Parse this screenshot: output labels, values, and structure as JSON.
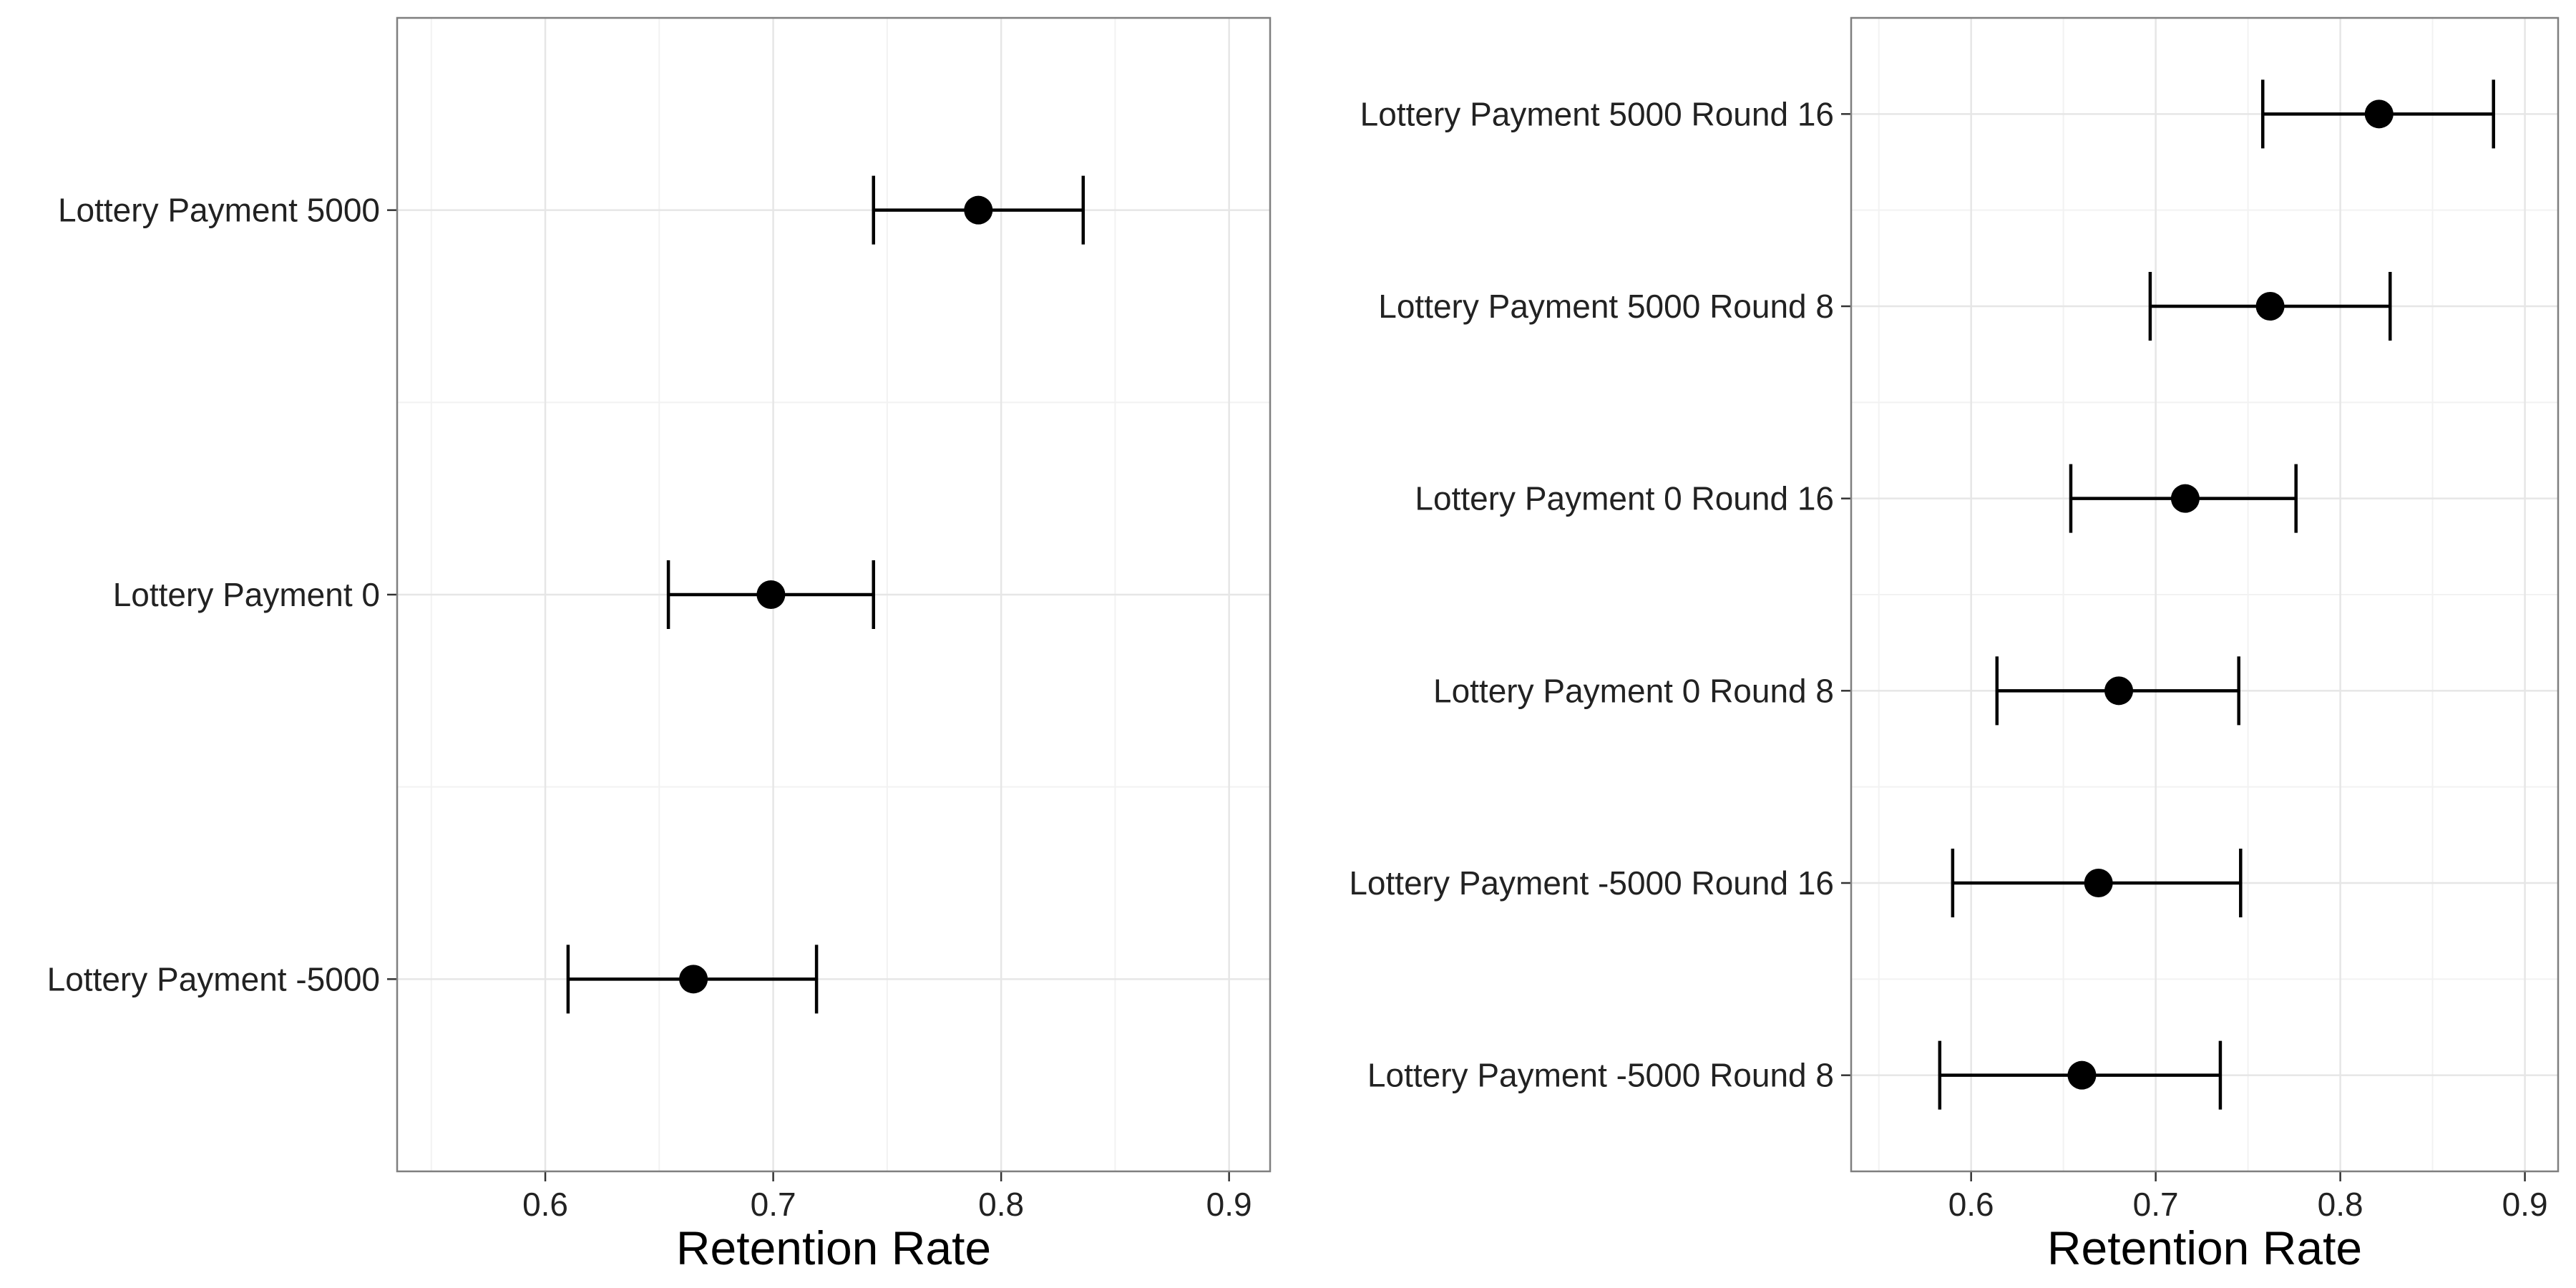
{
  "chart_data": [
    {
      "type": "scatter",
      "title": "",
      "xlabel": "Retention Rate",
      "ylabel": "",
      "xlim": [
        0.535,
        0.918
      ],
      "xticks": [
        0.6,
        0.7,
        0.8,
        0.9
      ],
      "xtick_labels": [
        "0.6",
        "0.7",
        "0.8",
        "0.9"
      ],
      "grid": true,
      "error_bars": true,
      "categories": [
        "Lottery Payment 5000",
        "Lottery Payment 0",
        "Lottery Payment -5000"
      ],
      "points": [
        {
          "label": "Lottery Payment 5000",
          "value": 0.79,
          "low": 0.744,
          "high": 0.836
        },
        {
          "label": "Lottery Payment 0",
          "value": 0.699,
          "low": 0.654,
          "high": 0.744
        },
        {
          "label": "Lottery Payment -5000",
          "value": 0.665,
          "low": 0.61,
          "high": 0.719
        }
      ]
    },
    {
      "type": "scatter",
      "title": "",
      "xlabel": "Retention Rate",
      "ylabel": "",
      "xlim": [
        0.535,
        0.918
      ],
      "xticks": [
        0.6,
        0.7,
        0.8,
        0.9
      ],
      "xtick_labels": [
        "0.6",
        "0.7",
        "0.8",
        "0.9"
      ],
      "grid": true,
      "error_bars": true,
      "categories": [
        "Lottery Payment 5000 Round 16",
        "Lottery Payment 5000 Round 8",
        "Lottery Payment 0 Round 16",
        "Lottery Payment 0 Round 8",
        "Lottery Payment -5000 Round 16",
        "Lottery Payment -5000 Round 8"
      ],
      "points": [
        {
          "label": "Lottery Payment 5000 Round 16",
          "value": 0.821,
          "low": 0.758,
          "high": 0.883
        },
        {
          "label": "Lottery Payment 5000 Round 8",
          "value": 0.762,
          "low": 0.697,
          "high": 0.827
        },
        {
          "label": "Lottery Payment 0 Round 16",
          "value": 0.716,
          "low": 0.654,
          "high": 0.776
        },
        {
          "label": "Lottery Payment 0 Round 8",
          "value": 0.68,
          "low": 0.614,
          "high": 0.745
        },
        {
          "label": "Lottery Payment -5000 Round 16",
          "value": 0.669,
          "low": 0.59,
          "high": 0.746
        },
        {
          "label": "Lottery Payment -5000 Round 8",
          "value": 0.66,
          "low": 0.583,
          "high": 0.735
        }
      ]
    }
  ]
}
